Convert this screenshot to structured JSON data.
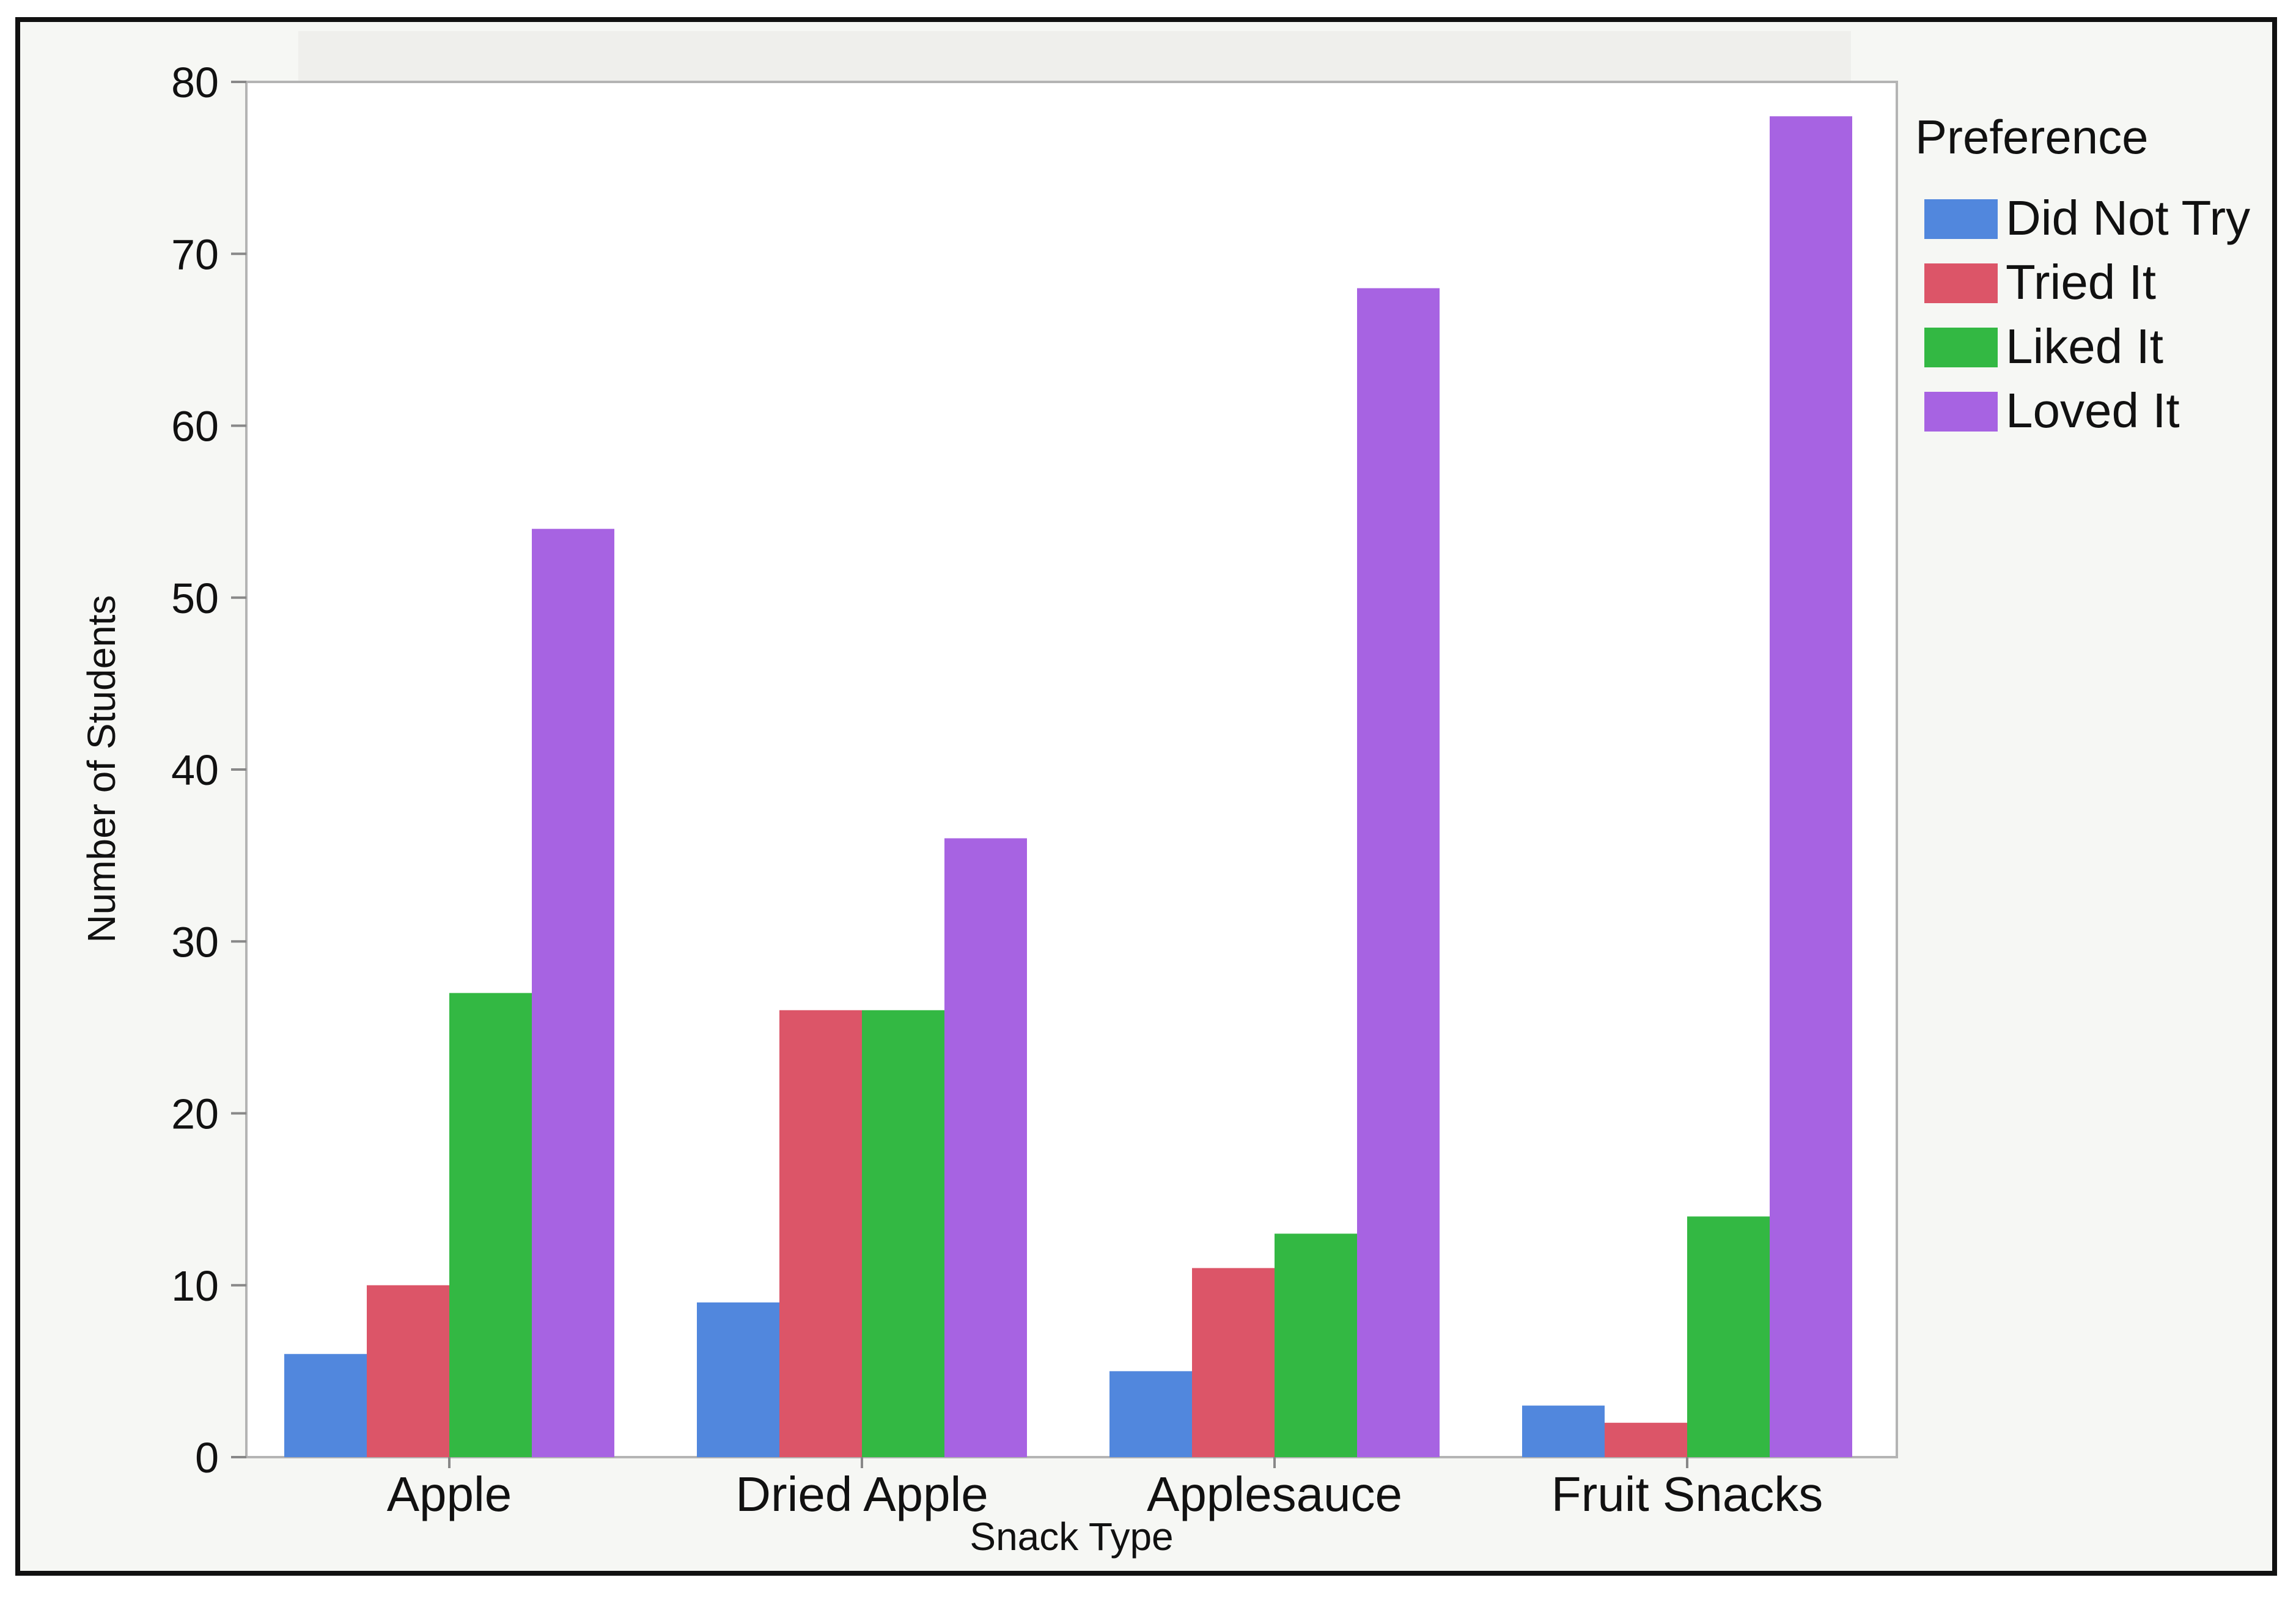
{
  "chart_data": {
    "type": "bar",
    "title": "",
    "xlabel": "Snack Type",
    "ylabel": "Number of Students",
    "ylim": [
      0,
      80
    ],
    "yticks": [
      0,
      10,
      20,
      30,
      40,
      50,
      60,
      70,
      80
    ],
    "categories": [
      "Apple",
      "Dried Apple",
      "Applesauce",
      "Fruit Snacks"
    ],
    "series": [
      {
        "name": "Did Not Try",
        "color": "#5187dd",
        "values": [
          6,
          9,
          5,
          3
        ]
      },
      {
        "name": "Tried It",
        "color": "#dc5568",
        "values": [
          10,
          26,
          11,
          2
        ]
      },
      {
        "name": "Liked It",
        "color": "#33b843",
        "values": [
          27,
          26,
          13,
          14
        ]
      },
      {
        "name": "Loved It",
        "color": "#a763e2",
        "values": [
          54,
          36,
          68,
          78
        ]
      }
    ],
    "legend": {
      "title": "Preference",
      "position": "right"
    },
    "grid": false
  }
}
